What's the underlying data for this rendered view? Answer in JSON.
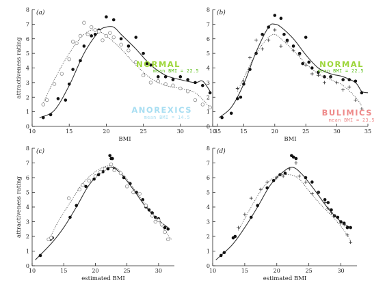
{
  "colors": {
    "normal": "#9dd63a",
    "normal_mean": "#5cbf1a",
    "anorexics": "#a8def2",
    "bulimics": "#ee8a8a",
    "ink": "#222222"
  },
  "chart_data": [
    {
      "type": "scatter",
      "panel": "(a)",
      "xlabel": "BMI",
      "ylabel": "attractiveness rating",
      "xlim": [
        10,
        35
      ],
      "ylim": [
        0,
        8
      ],
      "xticks": [
        10,
        15,
        20,
        25,
        30,
        35
      ],
      "yticks": [
        0,
        1,
        2,
        3,
        4,
        5,
        6,
        7,
        8
      ],
      "annotations": [
        {
          "text": "NORMAL",
          "color": "normal"
        },
        {
          "text": "mean BMI = 22.5",
          "color": "normal_mean"
        },
        {
          "text": "ANOREXICS",
          "color": "anorexics"
        },
        {
          "text": "mean BMI = 14.5",
          "color": "anorexics"
        }
      ],
      "series": [
        {
          "marker": "filled-circle",
          "line": "solid",
          "x": [
            11.5,
            12.5,
            13.5,
            14.5,
            15,
            15.5,
            16.5,
            17,
            18,
            18.5,
            19,
            20,
            21,
            22,
            23,
            24,
            25,
            25.5,
            26,
            27,
            28,
            29,
            30,
            31,
            32,
            33,
            34
          ],
          "y": [
            0.6,
            0.8,
            1.9,
            1.8,
            2.9,
            3.9,
            4.5,
            5.5,
            6.2,
            6.3,
            6.6,
            7.5,
            7.3,
            6.0,
            5.5,
            6.1,
            5.0,
            4.3,
            4.2,
            3.4,
            3.4,
            3.2,
            3.4,
            3.2,
            3.0,
            2.8,
            2.3
          ],
          "fit_x": [
            11,
            13,
            15,
            17,
            19,
            20,
            21,
            22,
            24,
            26,
            28,
            30,
            32,
            33,
            34
          ],
          "fit_y": [
            0.6,
            1.1,
            2.8,
            5.0,
            6.5,
            6.8,
            6.8,
            6.3,
            5.3,
            4.2,
            3.5,
            3.2,
            3.0,
            3.1,
            2.4
          ]
        },
        {
          "marker": "open-circle",
          "line": "dotted",
          "x": [
            11.5,
            12,
            13,
            14,
            15,
            15.5,
            16,
            16.5,
            17,
            17.5,
            18,
            18.5,
            19,
            19.5,
            20,
            20.5,
            21,
            22,
            23,
            24,
            25,
            26,
            27,
            28,
            29,
            30,
            31,
            32,
            33,
            34
          ],
          "y": [
            1.5,
            1.8,
            2.9,
            3.6,
            4.6,
            5.8,
            5.7,
            6.2,
            7.1,
            6.3,
            6.8,
            6.6,
            6.5,
            5.9,
            6.2,
            6.4,
            6.1,
            5.6,
            5.2,
            4.4,
            3.5,
            3.0,
            3.1,
            2.9,
            2.8,
            2.6,
            2.4,
            1.8,
            1.5,
            1.3
          ],
          "fit_x": [
            11.5,
            13,
            15,
            17,
            18.5,
            20,
            22,
            24,
            26,
            28,
            30,
            32,
            34
          ],
          "fit_y": [
            1.6,
            3.2,
            5.0,
            6.3,
            6.6,
            6.2,
            5.3,
            4.2,
            3.3,
            2.8,
            2.6,
            2.3,
            1.3
          ]
        }
      ]
    },
    {
      "type": "scatter",
      "panel": "(b)",
      "xlabel": "BMI",
      "ylabel": "",
      "xlim": [
        10,
        35
      ],
      "ylim": [
        0,
        8
      ],
      "xticks": [
        10,
        15,
        20,
        25,
        30,
        35
      ],
      "yticks": [
        0,
        1,
        2,
        3,
        4,
        5,
        6,
        7,
        8
      ],
      "annotations": [
        {
          "text": "NORMAL",
          "color": "normal"
        },
        {
          "text": "mean BMI = 22.5",
          "color": "normal_mean"
        },
        {
          "text": "BULIMICS",
          "color": "bulimics"
        },
        {
          "text": "mean BMI = 23.5",
          "color": "bulimics"
        }
      ],
      "series": [
        {
          "marker": "filled-circle",
          "line": "solid",
          "x": [
            11.5,
            13,
            14,
            14.5,
            15,
            16,
            17,
            18,
            19,
            20,
            21,
            21.5,
            22,
            23,
            24,
            24.5,
            25,
            25.5,
            26,
            27,
            28,
            29,
            31,
            32,
            33,
            34
          ],
          "y": [
            0.6,
            0.9,
            1.9,
            2.0,
            2.9,
            3.9,
            5.0,
            6.3,
            6.8,
            7.6,
            7.4,
            6.3,
            5.9,
            5.5,
            5.0,
            4.3,
            6.1,
            4.4,
            4.0,
            3.7,
            3.4,
            3.4,
            3.2,
            3.2,
            3.1,
            2.3
          ],
          "fit_x": [
            11,
            13,
            15,
            17,
            19,
            20,
            21,
            23,
            25,
            27,
            29,
            31,
            33,
            34,
            35
          ],
          "fit_y": [
            0.6,
            1.3,
            2.9,
            5.1,
            6.8,
            7.0,
            6.8,
            6.0,
            4.9,
            4.0,
            3.6,
            3.4,
            3.0,
            2.4,
            2.3
          ]
        },
        {
          "marker": "plus",
          "line": "dotted",
          "x": [
            14,
            15,
            16,
            17,
            18,
            19,
            20,
            21,
            22,
            23,
            24,
            25,
            26,
            27,
            28,
            29,
            30,
            31,
            32,
            33,
            34
          ],
          "y": [
            2.6,
            3.1,
            4.7,
            5.9,
            5.3,
            5.9,
            6.6,
            5.5,
            5.8,
            5.2,
            4.9,
            4.2,
            3.6,
            3.5,
            3.0,
            3.4,
            3.0,
            2.5,
            2.7,
            1.8,
            1.2
          ],
          "fit_x": [
            14,
            15,
            17,
            19,
            20,
            21,
            23,
            25,
            27,
            29,
            31,
            33,
            34
          ],
          "fit_y": [
            2.4,
            3.3,
            5.0,
            6.1,
            6.3,
            6.0,
            5.2,
            4.3,
            3.6,
            3.2,
            2.8,
            2.0,
            1.4
          ]
        }
      ]
    },
    {
      "type": "scatter",
      "panel": "(c)",
      "xlabel": "estimated BMI",
      "ylabel": "attractiveness rating",
      "xlim": [
        10,
        32.5
      ],
      "ylim": [
        0,
        8
      ],
      "xticks": [
        10,
        15,
        20,
        25,
        30
      ],
      "yticks": [
        0,
        1,
        2,
        3,
        4,
        5,
        6,
        7,
        8
      ],
      "annotations": [],
      "series": [
        {
          "marker": "filled-circle",
          "line": "solid",
          "x": [
            11.3,
            12.9,
            13.2,
            16,
            17,
            18.5,
            19.8,
            20.5,
            21.2,
            22,
            22.3,
            22.5,
            22.7,
            23,
            24.5,
            25.5,
            26.5,
            27.5,
            28,
            28.5,
            29,
            29.5,
            30,
            30.5,
            31,
            31.5
          ],
          "y": [
            0.7,
            1.8,
            1.9,
            3.3,
            4.1,
            5.4,
            5.9,
            6.2,
            6.4,
            6.6,
            7.5,
            7.3,
            7.3,
            6.6,
            6.0,
            5.6,
            5.0,
            4.5,
            4.0,
            3.8,
            3.6,
            3.3,
            3.2,
            2.8,
            2.6,
            2.5
          ],
          "fit_x": [
            10.5,
            13,
            15,
            17,
            19,
            21,
            22.5,
            24,
            26,
            28,
            30,
            31.5
          ],
          "fit_y": [
            0.4,
            1.5,
            2.6,
            4.0,
            5.5,
            6.4,
            6.7,
            6.3,
            5.2,
            4.0,
            3.1,
            2.6
          ]
        },
        {
          "marker": "open-circle",
          "line": "dotted",
          "x": [
            12.6,
            13,
            15.8,
            17.5,
            18,
            19,
            20,
            20.8,
            21.5,
            22.5,
            23,
            24,
            25,
            26,
            27,
            28,
            29,
            29.5,
            30,
            30.5,
            31,
            31.5
          ],
          "y": [
            1.8,
            1.9,
            4.6,
            5.2,
            5.5,
            5.8,
            6.1,
            6.4,
            6.6,
            6.9,
            6.5,
            6.3,
            5.4,
            5.0,
            4.9,
            4.1,
            3.4,
            3.0,
            3.1,
            2.8,
            2.3,
            1.8
          ],
          "fit_x": [
            12.6,
            14,
            16,
            18,
            20,
            22,
            23.5,
            25,
            27,
            29,
            31,
            32
          ],
          "fit_y": [
            1.7,
            2.9,
            4.3,
            5.6,
            6.4,
            6.8,
            6.6,
            5.9,
            4.7,
            3.6,
            2.4,
            1.8
          ]
        }
      ]
    },
    {
      "type": "scatter",
      "panel": "(d)",
      "xlabel": "estimated BMI",
      "ylabel": "",
      "xlim": [
        10,
        32.5
      ],
      "ylim": [
        0,
        8
      ],
      "xticks": [
        10,
        15,
        20,
        25,
        30
      ],
      "yticks": [
        0,
        1,
        2,
        3,
        4,
        5,
        6,
        7,
        8
      ],
      "annotations": [],
      "series": [
        {
          "marker": "filled-circle",
          "line": "solid",
          "x": [
            11.3,
            11.8,
            13.2,
            13.5,
            16,
            17,
            18.5,
            19.5,
            20.5,
            21.3,
            22.3,
            22.6,
            23,
            24.5,
            25.5,
            26.5,
            27.5,
            28,
            28.5,
            29,
            29.5,
            30,
            30.5,
            31,
            31.5
          ],
          "y": [
            0.7,
            0.9,
            1.9,
            2.0,
            3.3,
            4.1,
            5.3,
            5.8,
            6.2,
            6.3,
            7.5,
            7.4,
            7.3,
            6.0,
            5.7,
            5.0,
            4.5,
            4.3,
            3.8,
            3.4,
            3.3,
            3.0,
            2.9,
            2.6,
            2.6
          ],
          "fit_x": [
            10.5,
            13,
            15,
            17,
            19,
            21,
            22.5,
            24,
            26,
            28,
            30,
            31.5
          ],
          "fit_y": [
            0.4,
            1.4,
            2.6,
            4.0,
            5.5,
            6.4,
            6.7,
            6.2,
            5.1,
            3.9,
            3.0,
            2.6
          ]
        },
        {
          "marker": "plus",
          "line": "dotted",
          "x": [
            14,
            15,
            16,
            17.5,
            18.5,
            20,
            21,
            22,
            23,
            23.5,
            24.5,
            25.5,
            26.5,
            27.5,
            28,
            28.5,
            29,
            30,
            30.5,
            31,
            31.5
          ],
          "y": [
            2.6,
            3.5,
            4.6,
            5.2,
            5.7,
            6.0,
            6.1,
            6.6,
            7.0,
            6.1,
            5.7,
            4.9,
            5.0,
            4.3,
            3.9,
            3.6,
            3.4,
            2.9,
            2.8,
            2.1,
            1.6
          ],
          "fit_x": [
            14,
            16,
            18,
            20,
            22,
            23.5,
            25,
            27,
            29,
            30.5,
            31.5
          ],
          "fit_y": [
            2.4,
            4.0,
            5.4,
            6.1,
            6.2,
            5.9,
            5.1,
            4.1,
            3.2,
            2.4,
            1.7
          ]
        }
      ]
    }
  ]
}
